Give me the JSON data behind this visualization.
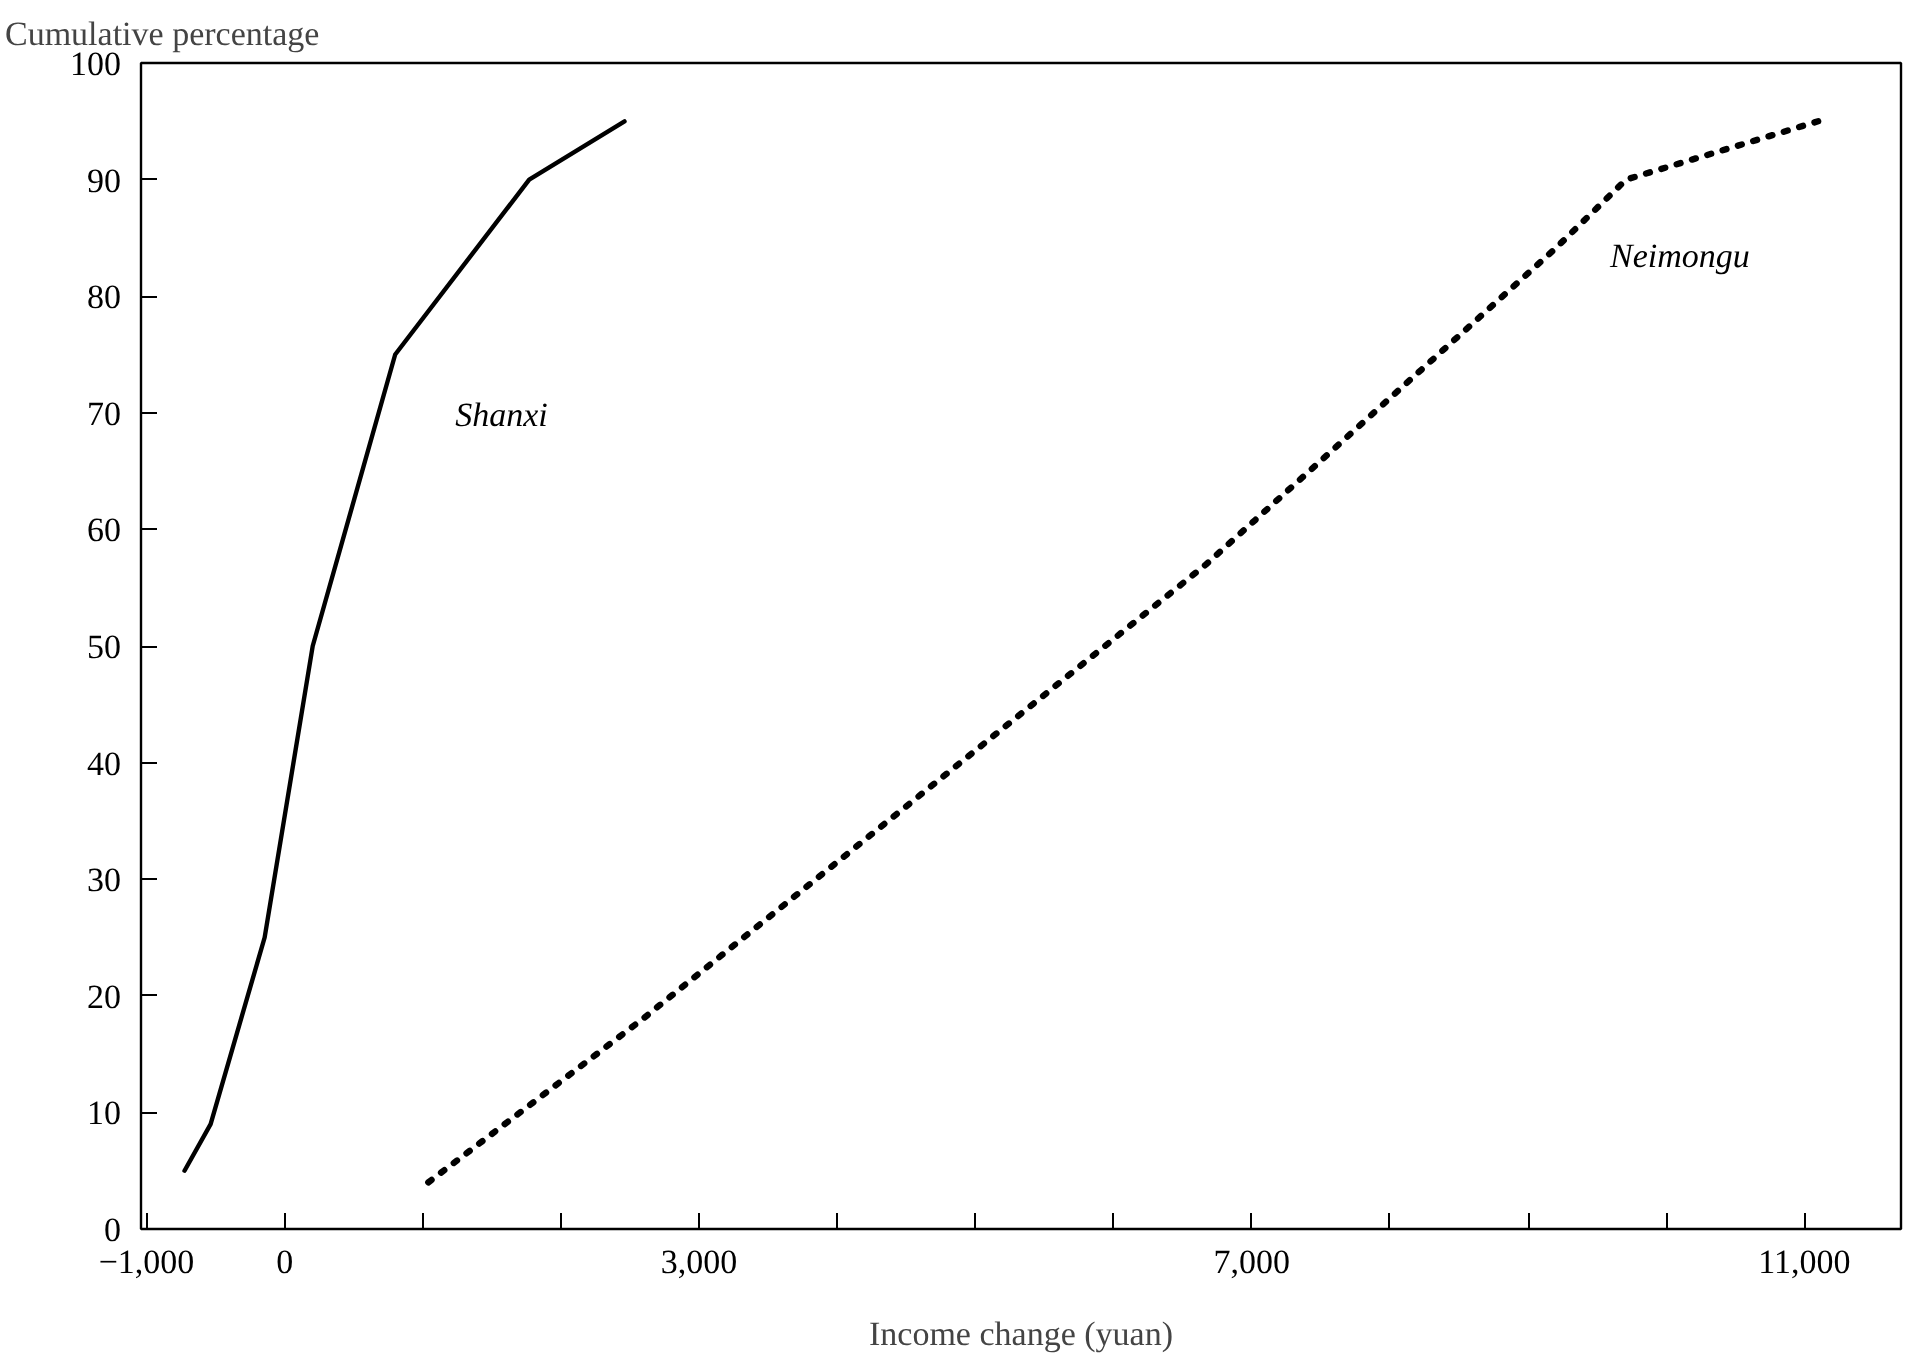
{
  "chart_data": {
    "type": "line",
    "ylabel": "Cumulative percentage",
    "xlabel": "Income change (yuan)",
    "series": [
      {
        "name": "Shanxi",
        "color": "#000000",
        "line_style": "solid",
        "x": [
          -725,
          -536,
          -145,
          203,
          800,
          1770,
          2460
        ],
        "values": [
          5,
          9,
          25,
          50,
          75,
          90,
          95
        ]
      },
      {
        "name": "Neimongu",
        "color": "#000000",
        "line_style": "dotted",
        "x": [
          1040,
          2590,
          6670,
          9190,
          9710,
          11100
        ],
        "values": [
          4,
          18,
          57,
          84,
          90,
          95
        ]
      }
    ],
    "xlim": [
      -1040,
      11700
    ],
    "ylim": [
      0,
      100
    ],
    "xticks": [
      {
        "value": -1000,
        "label": "−1,000"
      },
      0,
      {
        "value": 1000,
        "label": null
      },
      {
        "value": 2000,
        "label": null
      },
      {
        "value": 3000,
        "label": "3,000"
      },
      {
        "value": 4000,
        "label": null
      },
      {
        "value": 5000,
        "label": null
      },
      {
        "value": 6000,
        "label": null
      },
      {
        "value": 7000,
        "label": "7,000"
      },
      {
        "value": 8000,
        "label": null
      },
      {
        "value": 9000,
        "label": null
      },
      {
        "value": 10000,
        "label": null
      },
      {
        "value": 11000,
        "label": "11,000"
      }
    ],
    "yticks": [
      0,
      10,
      20,
      30,
      40,
      50,
      60,
      70,
      80,
      90,
      100
    ],
    "grid": false,
    "legend": false,
    "marker": "none"
  }
}
